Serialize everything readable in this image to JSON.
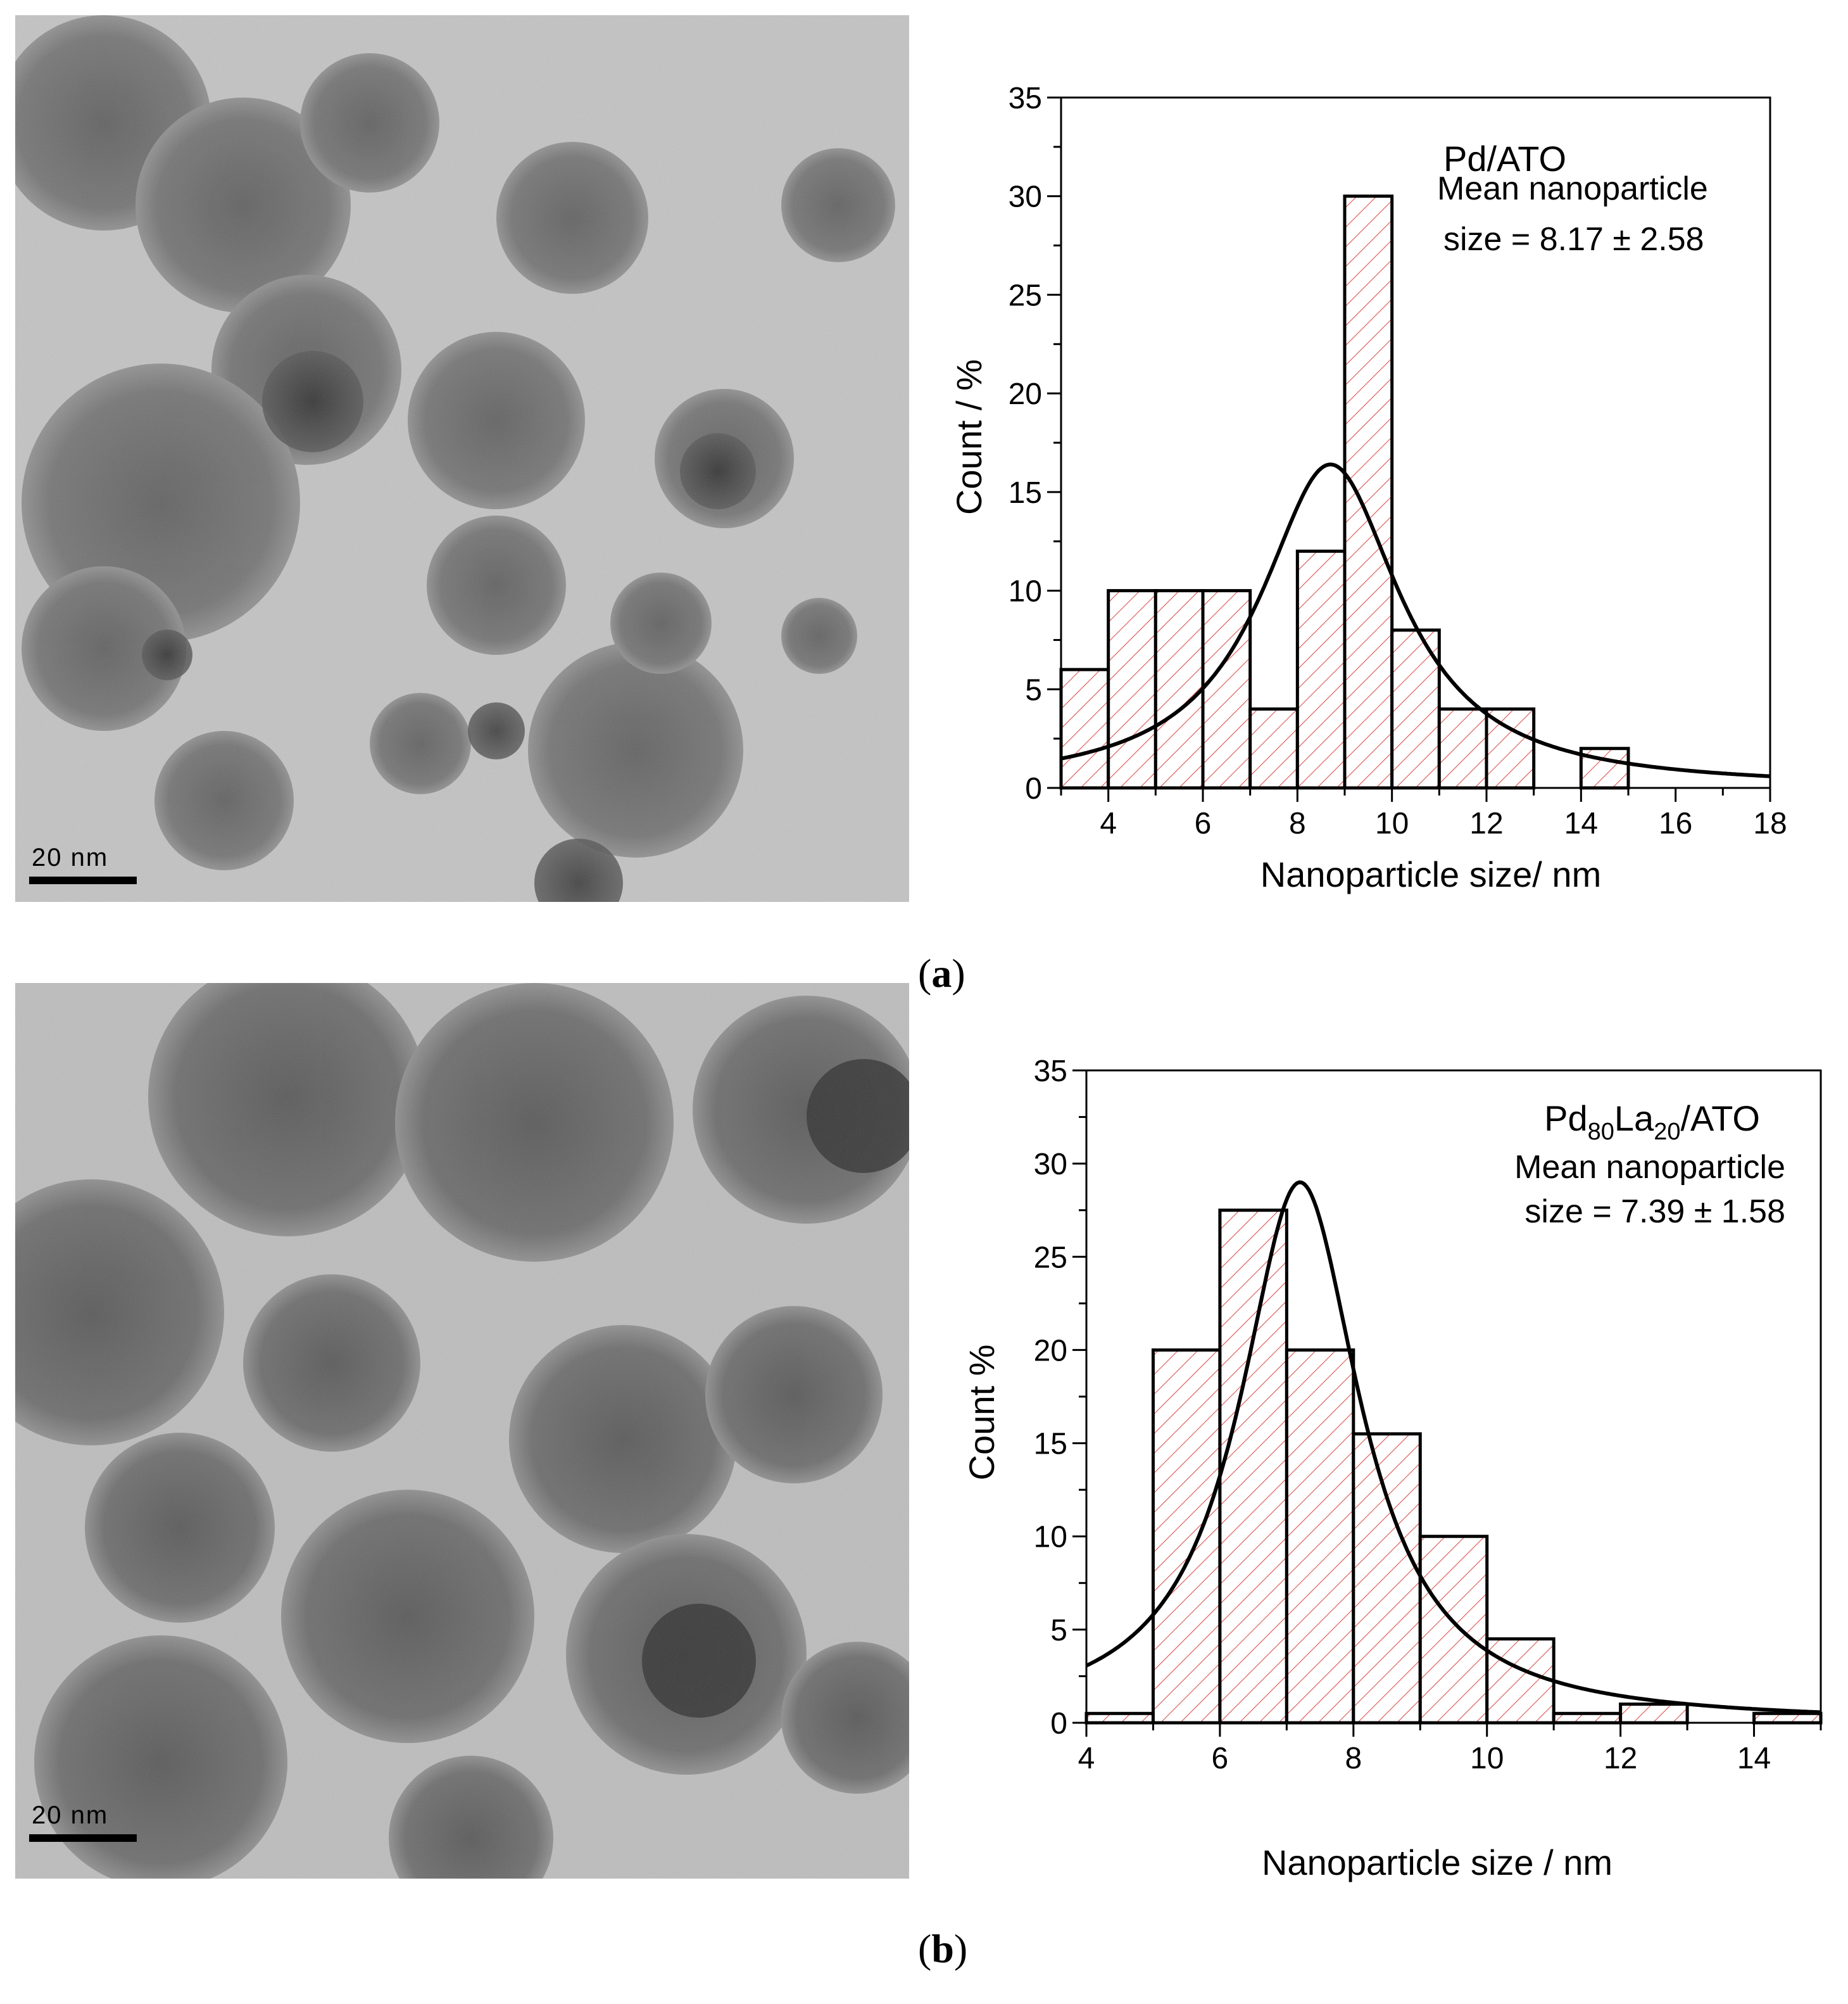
{
  "figure": {
    "panel_a_label": "a",
    "panel_b_label": "b",
    "scalebar_a": "20 nm",
    "scalebar_b": "20 nm"
  },
  "colors": {
    "bar_hatch": "#d9534f",
    "bar_edge": "#000000",
    "fit_line": "#000000"
  },
  "chart_data": [
    {
      "type": "bar",
      "panel": "a",
      "title": "Pd/ATO",
      "annotation_line1": "Mean nanoparticle",
      "annotation_line2": "size = 8.17 ± 2.58",
      "xlabel": "Nanoparticle size/ nm",
      "ylabel": "Count / %",
      "xlim": [
        3,
        18
      ],
      "ylim": [
        0,
        35
      ],
      "xticks": [
        4,
        6,
        8,
        10,
        12,
        14,
        16,
        18
      ],
      "yticks": [
        0,
        5,
        10,
        15,
        20,
        25,
        30,
        35
      ],
      "bins": [
        {
          "x0": 3,
          "x1": 4,
          "value": 6
        },
        {
          "x0": 4,
          "x1": 5,
          "value": 10
        },
        {
          "x0": 5,
          "x1": 6,
          "value": 10
        },
        {
          "x0": 6,
          "x1": 7,
          "value": 10
        },
        {
          "x0": 7,
          "x1": 8,
          "value": 4
        },
        {
          "x0": 8,
          "x1": 9,
          "value": 12
        },
        {
          "x0": 9,
          "x1": 10,
          "value": 30
        },
        {
          "x0": 10,
          "x1": 11,
          "value": 8
        },
        {
          "x0": 11,
          "x1": 12,
          "value": 4
        },
        {
          "x0": 12,
          "x1": 13,
          "value": 4
        },
        {
          "x0": 14,
          "x1": 15,
          "value": 2
        }
      ],
      "fit": {
        "type": "lorentzian",
        "center": 8.7,
        "width": 3.6,
        "height": 16.4
      }
    },
    {
      "type": "bar",
      "panel": "b",
      "title_main": "Pd",
      "title_sub1": "80",
      "title_mid": "La",
      "title_sub2": "20",
      "title_end": "/ATO",
      "annotation_line1": "Mean nanoparticle",
      "annotation_line2": "size = 7.39 ± 1.58",
      "xlabel": "Nanoparticle size / nm",
      "ylabel": "Count %",
      "xlim": [
        4,
        15
      ],
      "ylim": [
        0,
        35
      ],
      "xticks": [
        4,
        6,
        8,
        10,
        12,
        14
      ],
      "yticks": [
        0,
        5,
        10,
        15,
        20,
        25,
        30,
        35
      ],
      "bins": [
        {
          "x0": 4,
          "x1": 5,
          "value": 0.5
        },
        {
          "x0": 5,
          "x1": 6,
          "value": 20
        },
        {
          "x0": 6,
          "x1": 7,
          "value": 27.5
        },
        {
          "x0": 7,
          "x1": 8,
          "value": 20
        },
        {
          "x0": 8,
          "x1": 9,
          "value": 15.5
        },
        {
          "x0": 9,
          "x1": 10,
          "value": 10
        },
        {
          "x0": 10,
          "x1": 11,
          "value": 4.5
        },
        {
          "x0": 11,
          "x1": 12,
          "value": 0.5
        },
        {
          "x0": 12,
          "x1": 13,
          "value": 1
        },
        {
          "x0": 14,
          "x1": 15,
          "value": 0.5
        }
      ],
      "fit": {
        "type": "lorentzian",
        "center": 7.2,
        "width": 2.2,
        "height": 29
      }
    }
  ]
}
